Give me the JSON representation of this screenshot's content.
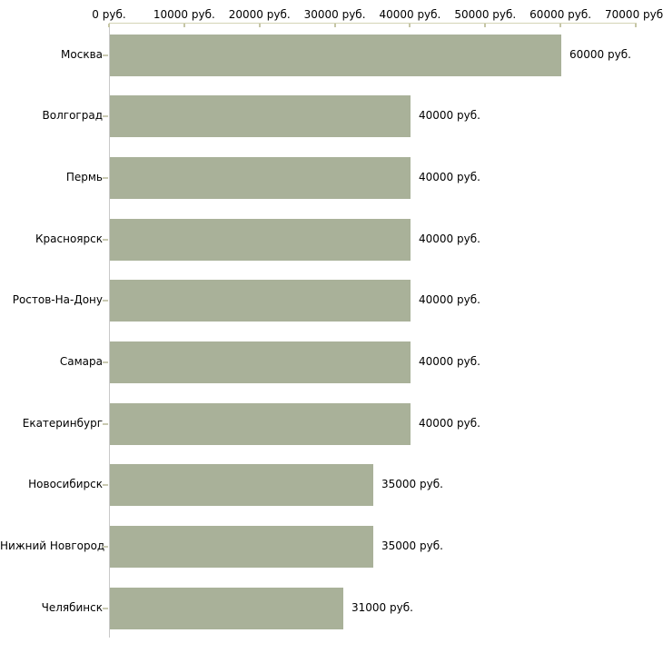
{
  "chart_data": {
    "type": "bar",
    "orientation": "horizontal",
    "title": "",
    "categories": [
      "Москва",
      "Волгоград",
      "Пермь",
      "Красноярск",
      "Ростов-На-Дону",
      "Самара",
      "Екатеринбург",
      "Новосибирск",
      "Нижний Новгород",
      "Челябинск"
    ],
    "values": [
      60000,
      40000,
      40000,
      40000,
      40000,
      40000,
      40000,
      35000,
      35000,
      31000
    ],
    "value_labels": [
      "60000 руб.",
      "40000 руб.",
      "40000 руб.",
      "40000 руб.",
      "40000 руб.",
      "40000 руб.",
      "40000 руб.",
      "35000 руб.",
      "35000 руб.",
      "31000 руб."
    ],
    "x_axis": {
      "position": "top",
      "tick_values": [
        0,
        10000,
        20000,
        30000,
        40000,
        50000,
        60000,
        70000
      ],
      "tick_labels": [
        "0 руб.",
        "10000 руб.",
        "20000 руб.",
        "30000 руб.",
        "40000 руб.",
        "50000 руб.",
        "60000 руб.",
        "70000 руб."
      ]
    },
    "xlim": [
      0,
      70000
    ],
    "unit": "руб.",
    "grid": false,
    "legend": null,
    "colors": {
      "bar": "#a9b199",
      "x_axis_line": "#d4d4b6",
      "y_axis_line": "#c9c9c9",
      "x_tick": "#c6c6a6",
      "y_tick": "#c9c9b1",
      "text": "#000000",
      "background": "#ffffff"
    }
  }
}
